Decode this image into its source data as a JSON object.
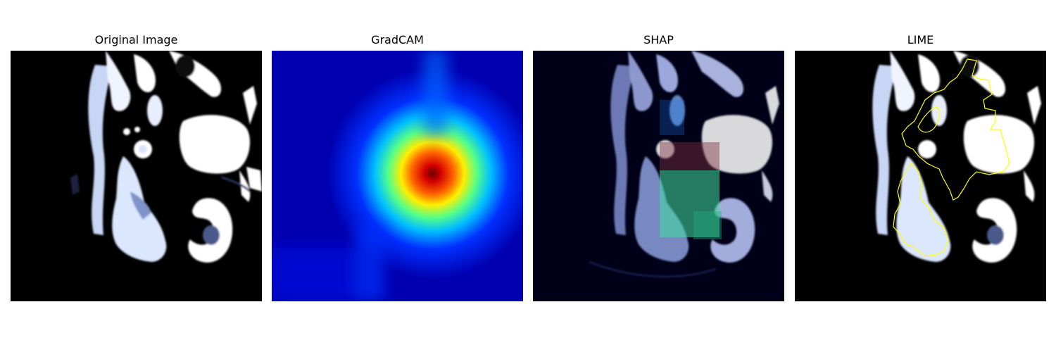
{
  "panels": [
    {
      "title": "Original Image",
      "kind": "ct-scan"
    },
    {
      "title": "GradCAM",
      "kind": "heatmap-overlay"
    },
    {
      "title": "SHAP",
      "kind": "shap-overlay"
    },
    {
      "title": "LIME",
      "kind": "lime-boundary-overlay"
    }
  ],
  "colors": {
    "background": "#ffffff",
    "ct_tissue": "#e8f0ff",
    "ct_bone": "#ffffff",
    "heat_low": "#00008b",
    "heat_high": "#8b0000",
    "lime_boundary": "#ffff00"
  }
}
